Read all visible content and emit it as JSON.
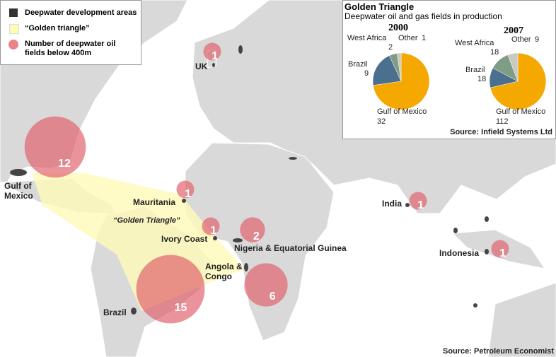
{
  "legend": {
    "items": [
      "Deepwater development areas",
      "“Golden triangle”",
      "Number of deepwater oil fields below 400m"
    ]
  },
  "map": {
    "triangle_label": "“Golden Triangle”",
    "bubbles": [
      {
        "label": "UK",
        "value": 1
      },
      {
        "label": "Gulf of Mexico",
        "value": 12
      },
      {
        "label": "Mauritania",
        "value": 1
      },
      {
        "label": "Ivory Coast",
        "value": 1
      },
      {
        "label": "Nigeria & Equatorial Guinea",
        "value": 2
      },
      {
        "label": "Angola & Congo",
        "value": 6
      },
      {
        "label": "Brazil",
        "value": 15
      },
      {
        "label": "India",
        "value": 1
      },
      {
        "label": "Indonesia",
        "value": 1
      }
    ],
    "source": "Source: Petroleum Economist"
  },
  "inset": {
    "title": "Golden Triangle",
    "subtitle": "Deepwater oil and gas fields in production",
    "pies": [
      {
        "year": "2000",
        "slices": [
          {
            "name": "Gulf of Mexico",
            "value": 32,
            "color": "#f5a800"
          },
          {
            "name": "Brazil",
            "value": 9,
            "color": "#4b6f8e"
          },
          {
            "name": "West Africa",
            "value": 2,
            "color": "#7f9c85"
          },
          {
            "name": "Other",
            "value": 1,
            "color": "#c9c9c1"
          }
        ]
      },
      {
        "year": "2007",
        "slices": [
          {
            "name": "Gulf of Mexico",
            "value": 112,
            "color": "#f5a800"
          },
          {
            "name": "Brazil",
            "value": 18,
            "color": "#4b6f8e"
          },
          {
            "name": "West Africa",
            "value": 18,
            "color": "#7f9c85"
          },
          {
            "name": "Other",
            "value": 9,
            "color": "#c9c9c1"
          }
        ]
      }
    ],
    "source": "Source: Infield Systems Ltd"
  }
}
